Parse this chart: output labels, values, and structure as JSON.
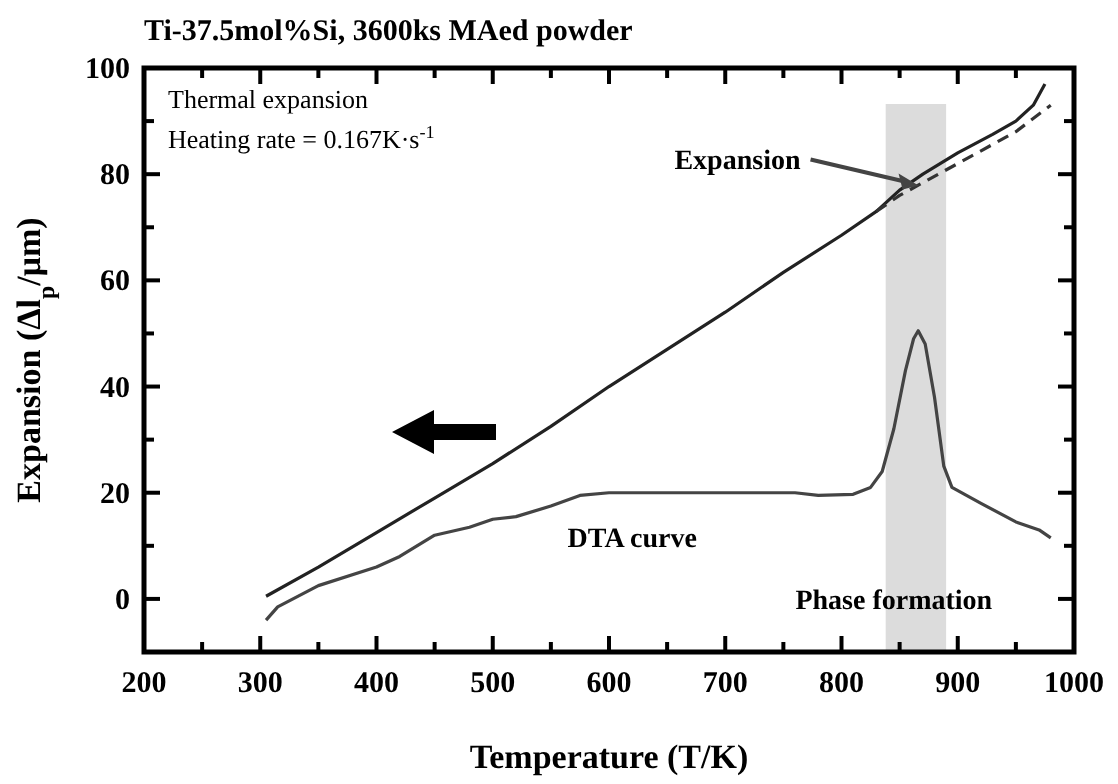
{
  "chart_data": {
    "type": "line",
    "title": "Ti-37.5mol%Si, 3600ks MAed powder",
    "xlabel": "Temperature (T/K)",
    "ylabel": "Expansion (Δl$_{p}$/μm)",
    "xlim": [
      200,
      1000
    ],
    "ylim": [
      -10,
      100
    ],
    "xticks": [
      200,
      {
        "value": 250,
        "label": null
      },
      300,
      {
        "value": 350,
        "label": null
      },
      400,
      {
        "value": 450,
        "label": null
      },
      500,
      {
        "value": 550,
        "label": null
      },
      600,
      {
        "value": 650,
        "label": null
      },
      700,
      {
        "value": 750,
        "label": null
      },
      800,
      {
        "value": 850,
        "label": null
      },
      900,
      {
        "value": 950,
        "label": null
      },
      1000
    ],
    "yticks": [
      {
        "value": -10,
        "label": null
      },
      0,
      {
        "value": 10,
        "label": null
      },
      20,
      {
        "value": 30,
        "label": null
      },
      40,
      {
        "value": 50,
        "label": null
      },
      60,
      {
        "value": 70,
        "label": null
      },
      80,
      {
        "value": 90,
        "label": null
      },
      100
    ],
    "grid": false,
    "marker": "none",
    "series": [
      {
        "color": "#222222",
        "line_style": "solid",
        "x": [
          305,
          350,
          400,
          450,
          500,
          550,
          600,
          650,
          700,
          750,
          800,
          830,
          850,
          870,
          900,
          930,
          950,
          965,
          975
        ],
        "values": [
          0.5,
          6,
          12.5,
          19,
          25.5,
          32.5,
          40,
          47,
          54,
          61.5,
          68.5,
          73,
          77,
          80,
          84,
          87.5,
          90,
          93,
          97
        ]
      },
      {
        "color": "#333333",
        "line_style": "dashed",
        "x": [
          830,
          850,
          900,
          950,
          980
        ],
        "values": [
          73,
          76,
          82,
          88,
          93
        ]
      },
      {
        "color": "#444444",
        "line_style": "solid",
        "x": [
          305,
          315,
          350,
          400,
          420,
          450,
          480,
          500,
          520,
          550,
          575,
          600,
          700,
          760,
          780,
          810,
          825,
          835,
          845,
          855,
          862,
          866,
          872,
          880,
          888,
          895,
          920,
          950,
          970,
          980
        ],
        "values": [
          -4,
          -1.5,
          2.5,
          6,
          8,
          12,
          13.5,
          15,
          15.5,
          17.5,
          19.5,
          20,
          20,
          20,
          19.5,
          19.7,
          21,
          24,
          32,
          43,
          49,
          50.5,
          48,
          38,
          25,
          21,
          18,
          14.5,
          13,
          11.5
        ]
      }
    ],
    "bands": [
      {
        "axis": "x",
        "from": 838,
        "to": 890,
        "color": "#dcdcdc"
      }
    ],
    "annotations": [
      "Thermal expansion",
      "Heating rate = 0.167K·s$^{-1}$",
      {
        "text": "Expansion",
        "x": 868,
        "y": 79
      },
      {
        "text": "DTA curve",
        "x": 620,
        "y": 20
      },
      {
        "text": "Phase formation",
        "x": 845,
        "y": 0
      }
    ]
  }
}
